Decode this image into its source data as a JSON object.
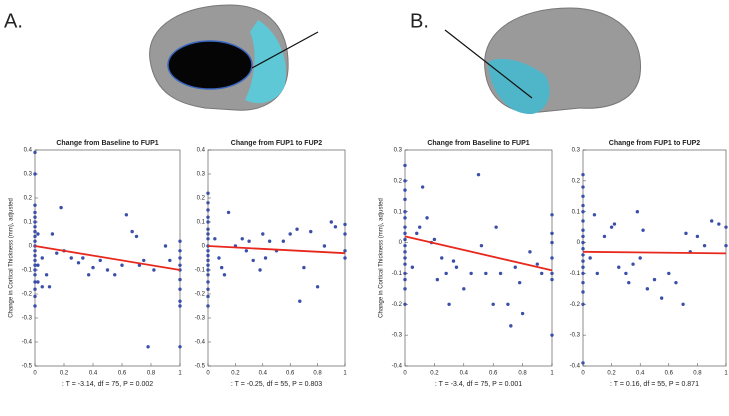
{
  "panels": [
    "A.",
    "B."
  ],
  "chart_data": [
    {
      "type": "scatter",
      "title": "Change from Baseline to FUP1",
      "ylabel": "Change in Cortical Thickness (mm), adjusted",
      "annotation": ": T = -3.14, df = 75, P = 0.002",
      "xlim": [
        0,
        1
      ],
      "ylim": [
        -0.5,
        0.4
      ],
      "xticks": [
        0,
        0.2,
        0.4,
        0.6,
        0.8,
        1
      ],
      "yticks": [
        -0.5,
        -0.4,
        -0.3,
        -0.2,
        -0.1,
        0,
        0.1,
        0.2,
        0.3,
        0.4
      ],
      "color": "#3b4fa8",
      "x": [
        0,
        0,
        0,
        0,
        0,
        0,
        0,
        0,
        0,
        0,
        0,
        0,
        0,
        0,
        0,
        0,
        0,
        0,
        0,
        0,
        0,
        0.02,
        0.02,
        0.02,
        0.05,
        0.05,
        0.08,
        0.1,
        0.12,
        0.15,
        0.18,
        0.2,
        0.25,
        0.3,
        0.33,
        0.37,
        0.4,
        0.45,
        0.5,
        0.55,
        0.6,
        0.63,
        0.67,
        0.7,
        0.72,
        0.75,
        0.78,
        0.82,
        0.9,
        0.93,
        1,
        1,
        1,
        1,
        1,
        1,
        1,
        1,
        1,
        1
      ],
      "values": [
        0.39,
        0.3,
        0.17,
        0.14,
        0.12,
        0.1,
        0.08,
        0.06,
        0.04,
        0.02,
        0,
        -0.02,
        -0.04,
        -0.06,
        -0.08,
        -0.1,
        -0.12,
        -0.15,
        -0.18,
        -0.21,
        -0.25,
        0.05,
        -0.08,
        -0.15,
        -0.05,
        -0.17,
        -0.12,
        -0.17,
        0.05,
        -0.03,
        0.16,
        -0.02,
        -0.05,
        -0.07,
        -0.05,
        -0.12,
        -0.09,
        -0.06,
        -0.1,
        -0.12,
        -0.08,
        0.13,
        0.06,
        0.04,
        -0.08,
        -0.06,
        -0.42,
        -0.1,
        0,
        -0.06,
        0.02,
        -0.02,
        -0.05,
        -0.08,
        -0.1,
        -0.14,
        -0.18,
        -0.23,
        -0.25,
        -0.42
      ],
      "fit": {
        "x": [
          0,
          1
        ],
        "values": [
          0,
          -0.1
        ],
        "color": "#e8281c"
      }
    },
    {
      "type": "scatter",
      "title": "Change from FUP1 to FUP2",
      "annotation": ": T = -0.25, df = 55, P = 0.803",
      "xlim": [
        0,
        1
      ],
      "ylim": [
        -0.5,
        0.4
      ],
      "xticks": [
        0,
        0.2,
        0.4,
        0.6,
        0.8,
        1
      ],
      "yticks": [
        -0.5,
        -0.4,
        -0.3,
        -0.2,
        -0.1,
        0,
        0.1,
        0.2,
        0.3,
        0.4
      ],
      "color": "#3b4fa8",
      "x": [
        0,
        0,
        0,
        0,
        0,
        0,
        0,
        0,
        0,
        0,
        0,
        0,
        0,
        0,
        0,
        0,
        0,
        0,
        0,
        0.05,
        0.08,
        0.1,
        0.12,
        0.15,
        0.2,
        0.25,
        0.28,
        0.3,
        0.33,
        0.38,
        0.4,
        0.42,
        0.45,
        0.5,
        0.55,
        0.6,
        0.65,
        0.67,
        0.7,
        0.75,
        0.8,
        0.85,
        0.9,
        0.93,
        1,
        1,
        1,
        1
      ],
      "values": [
        0.22,
        0.18,
        0.15,
        0.12,
        0.1,
        0.07,
        0.05,
        0.03,
        0,
        -0.02,
        -0.04,
        -0.06,
        -0.08,
        -0.1,
        -0.12,
        -0.15,
        -0.18,
        -0.21,
        -0.25,
        0.03,
        -0.05,
        -0.09,
        -0.12,
        0.14,
        0,
        0.03,
        -0.02,
        0.02,
        -0.06,
        -0.1,
        0.05,
        -0.05,
        0.02,
        -0.02,
        0.02,
        0.05,
        0.07,
        -0.23,
        -0.09,
        0.06,
        -0.17,
        0,
        0.1,
        0.08,
        0.09,
        0.05,
        -0.02,
        -0.05
      ],
      "fit": {
        "x": [
          0,
          1
        ],
        "values": [
          0,
          -0.03
        ],
        "color": "#e8281c"
      }
    },
    {
      "type": "scatter",
      "title": "Change from Baseline to FUP1",
      "ylabel": "Change in Cortical Thickness (mm), adjusted",
      "annotation": ": T = -3.4, df = 75, P = 0.001",
      "xlim": [
        0,
        1
      ],
      "ylim": [
        -0.4,
        0.3
      ],
      "xticks": [
        0,
        0.2,
        0.4,
        0.6,
        0.8,
        1
      ],
      "yticks": [
        -0.4,
        -0.3,
        -0.2,
        -0.1,
        0,
        0.1,
        0.2,
        0.3
      ],
      "color": "#3b4fa8",
      "x": [
        0,
        0,
        0,
        0,
        0,
        0,
        0,
        0,
        0,
        0,
        0,
        0,
        0,
        0,
        0,
        0,
        0,
        0.05,
        0.08,
        0.1,
        0.12,
        0.15,
        0.18,
        0.2,
        0.22,
        0.25,
        0.28,
        0.3,
        0.33,
        0.35,
        0.4,
        0.45,
        0.5,
        0.52,
        0.55,
        0.6,
        0.62,
        0.65,
        0.7,
        0.72,
        0.75,
        0.78,
        0.8,
        0.85,
        0.9,
        0.93,
        1,
        1,
        1,
        1,
        1,
        1,
        1
      ],
      "values": [
        0.25,
        0.2,
        0.17,
        0.14,
        0.1,
        0.08,
        0.05,
        0.03,
        0.01,
        -0.01,
        -0.03,
        -0.05,
        -0.07,
        -0.1,
        -0.12,
        -0.15,
        -0.2,
        -0.08,
        0.03,
        0.05,
        0.18,
        0.08,
        0,
        0.01,
        -0.12,
        -0.05,
        -0.1,
        -0.2,
        -0.06,
        -0.08,
        -0.15,
        -0.1,
        0.22,
        -0.01,
        -0.1,
        -0.2,
        0.05,
        -0.1,
        -0.2,
        -0.27,
        -0.08,
        -0.13,
        -0.23,
        -0.03,
        -0.07,
        -0.1,
        0.09,
        0.03,
        0,
        -0.05,
        -0.1,
        -0.12,
        -0.3
      ],
      "fit": {
        "x": [
          0,
          1
        ],
        "values": [
          0.02,
          -0.09
        ],
        "color": "#e8281c"
      }
    },
    {
      "type": "scatter",
      "title": "Change from FUP1 to FUP2",
      "annotation": ": T = 0.16, df = 55, P = 0.871",
      "xlim": [
        0,
        1
      ],
      "ylim": [
        -0.4,
        0.3
      ],
      "xticks": [
        0,
        0.2,
        0.4,
        0.6,
        0.8,
        1
      ],
      "yticks": [
        -0.4,
        -0.3,
        -0.2,
        -0.1,
        0,
        0.1,
        0.2,
        0.3
      ],
      "color": "#3b4fa8",
      "x": [
        0,
        0,
        0,
        0,
        0,
        0,
        0,
        0,
        0,
        0,
        0,
        0,
        0,
        0,
        0,
        0,
        0,
        0,
        0.05,
        0.08,
        0.1,
        0.15,
        0.2,
        0.22,
        0.25,
        0.3,
        0.32,
        0.35,
        0.38,
        0.4,
        0.42,
        0.45,
        0.5,
        0.55,
        0.6,
        0.65,
        0.7,
        0.72,
        0.75,
        0.8,
        0.85,
        0.9,
        0.95,
        1,
        1
      ],
      "values": [
        0.22,
        0.18,
        0.15,
        0.12,
        0.1,
        0.07,
        0.04,
        0.02,
        0,
        -0.02,
        -0.04,
        -0.06,
        -0.08,
        -0.1,
        -0.13,
        -0.16,
        -0.2,
        -0.39,
        -0.05,
        0.09,
        -0.1,
        0.02,
        0.05,
        0.06,
        -0.08,
        -0.1,
        -0.13,
        -0.07,
        0.1,
        -0.05,
        0.04,
        -0.15,
        -0.12,
        -0.18,
        -0.1,
        -0.13,
        -0.2,
        0.03,
        -0.03,
        0.02,
        -0.01,
        0.07,
        0.06,
        0.05,
        -0.01
      ],
      "fit": {
        "x": [
          0,
          1
        ],
        "values": [
          -0.03,
          -0.035
        ],
        "color": "#e8281c"
      }
    }
  ]
}
